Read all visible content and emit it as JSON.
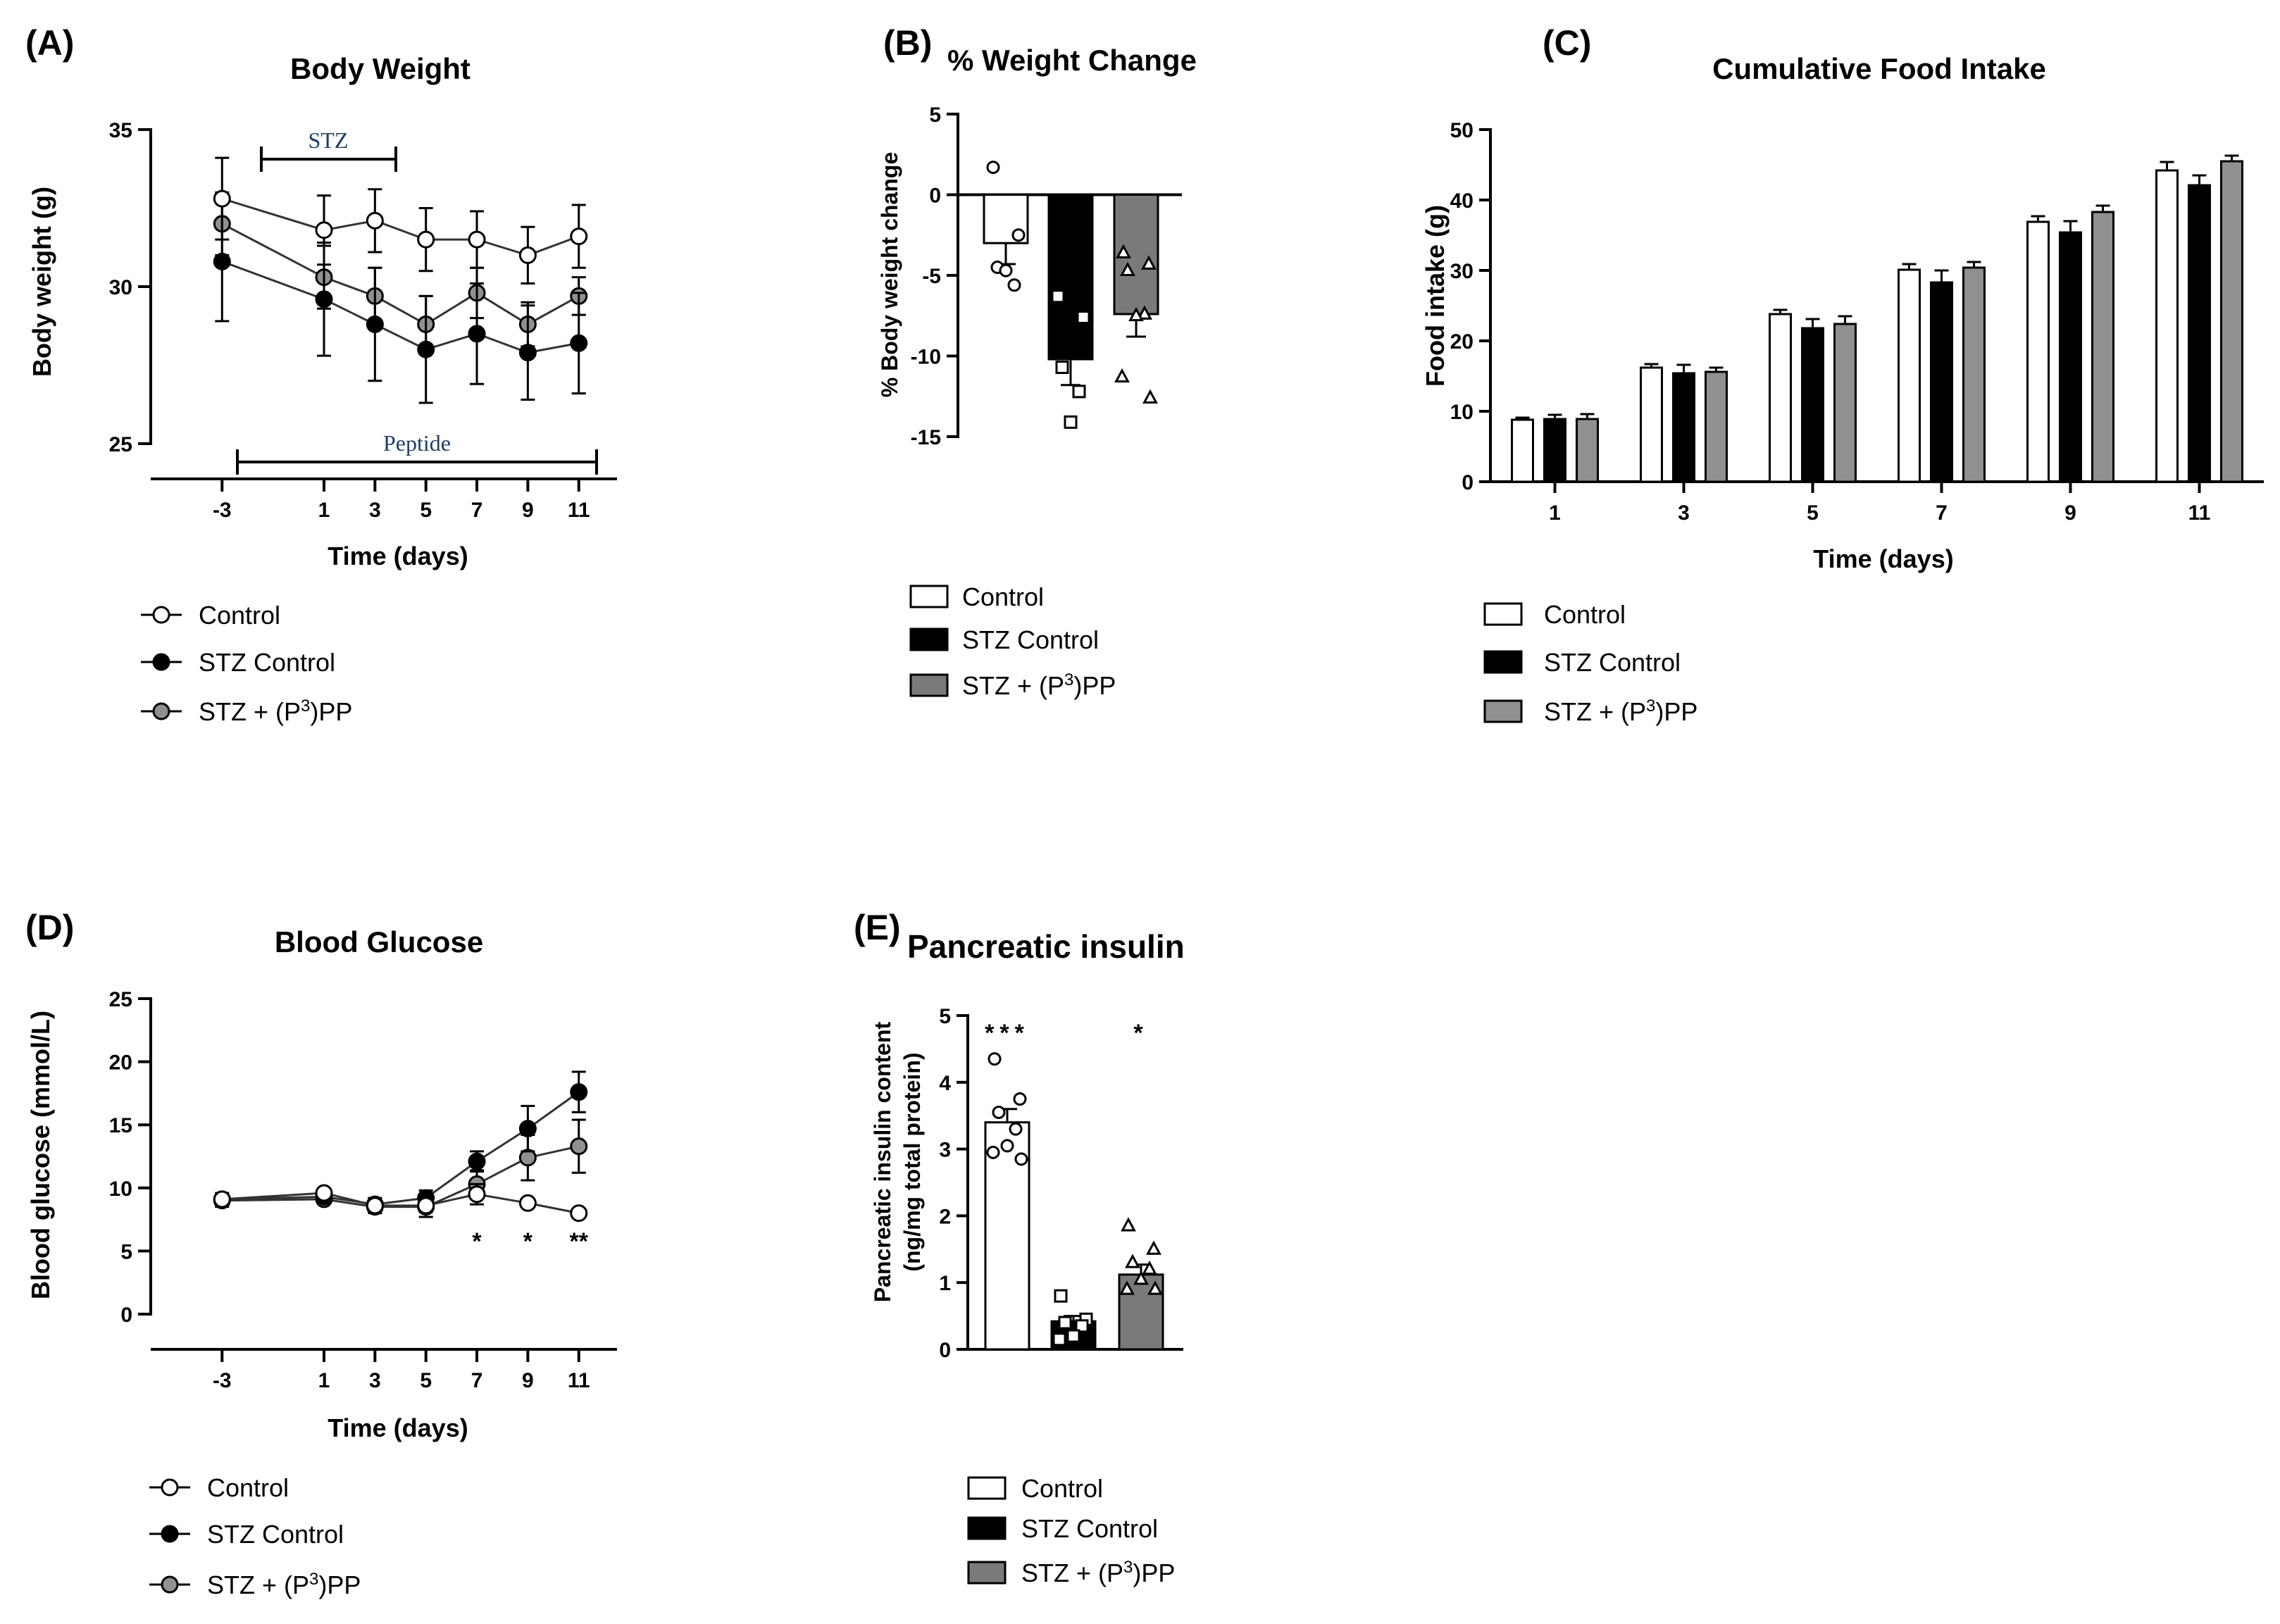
{
  "colors": {
    "control": "#ffffff",
    "stz_control": "#000000",
    "stz_p3pp": "#909090",
    "stz_p3pp_bar": "#7a7a7a",
    "stroke": "#000000",
    "annotation": "#1f3d66"
  },
  "legend": [
    {
      "key": "control",
      "label": "Control"
    },
    {
      "key": "stz_control",
      "label": "STZ Control"
    },
    {
      "key": "stz_p3pp",
      "label": "STZ + (P",
      "sup": "3",
      "tail": ")PP"
    }
  ],
  "chart_data": [
    {
      "id": "A",
      "panel_label": "(A)",
      "type": "line",
      "title": "Body Weight",
      "xlabel": "Time (days)",
      "ylabel": "Body weight (g)",
      "x": [
        -3,
        1,
        3,
        5,
        7,
        9,
        11
      ],
      "xlim": [
        -5.8,
        12.5
      ],
      "ylim": [
        25,
        35
      ],
      "yticks": [
        25,
        30,
        35
      ],
      "series": [
        {
          "name": "Control",
          "key": "control",
          "values": [
            32.8,
            31.8,
            32.1,
            31.5,
            31.5,
            31.0,
            31.6
          ],
          "err": [
            1.3,
            1.1,
            1.0,
            1.0,
            0.9,
            0.9,
            1.0
          ]
        },
        {
          "name": "STZ Control",
          "key": "stz_control",
          "values": [
            30.8,
            29.6,
            28.8,
            28.0,
            28.5,
            27.9,
            28.2
          ],
          "err": [
            1.9,
            1.8,
            1.8,
            1.7,
            1.6,
            1.5,
            1.6
          ]
        },
        {
          "name": "STZ + (P3)PP",
          "key": "stz_p3pp",
          "values": [
            32.0,
            30.3,
            29.7,
            28.8,
            29.8,
            28.8,
            29.7
          ],
          "err": [
            1.0,
            1.0,
            0.9,
            0.9,
            0.8,
            0.7,
            0.6
          ]
        }
      ],
      "annotations": [
        {
          "text": "STZ",
          "x_start": 1,
          "x_end": 5,
          "y": 34.0
        },
        {
          "text": "Peptide",
          "x_start": 0.5,
          "x_end": 11,
          "y": 24.3
        }
      ]
    },
    {
      "id": "B",
      "panel_label": "(B)",
      "type": "bar",
      "title": "% Weight Change",
      "xlabel": "",
      "ylabel": "% Body weight change",
      "categories": [
        "Control",
        "STZ Control",
        "STZ + (P3)PP"
      ],
      "keys": [
        "control",
        "stz_control",
        "stz_p3pp_bar"
      ],
      "values": [
        -3.0,
        -10.2,
        -7.4
      ],
      "err": [
        1.3,
        1.6,
        1.4
      ],
      "ylim": [
        -15,
        5
      ],
      "yticks": [
        -15,
        -10,
        -5,
        0,
        5
      ],
      "points": [
        [
          1.7,
          -2.5,
          -4.5,
          -5.6,
          -4.7
        ],
        [
          -6.3,
          -7.6,
          -10.7,
          -12.2,
          -14.1
        ],
        [
          -3.6,
          -4.3,
          -4.7,
          -7.4,
          -7.5,
          -11.3,
          -12.6
        ]
      ],
      "markers": [
        "circle",
        "square",
        "triangle"
      ]
    },
    {
      "id": "C",
      "panel_label": "(C)",
      "type": "bar",
      "title": "Cumulative Food Intake",
      "xlabel": "Time (days)",
      "ylabel": "Food intake (g)",
      "categories": [
        "1",
        "3",
        "5",
        "7",
        "9",
        "11"
      ],
      "series": [
        {
          "name": "Control",
          "key": "control",
          "values": [
            8.8,
            16.2,
            23.8,
            30.1,
            36.9,
            44.2
          ],
          "err": [
            0.3,
            0.5,
            0.6,
            0.8,
            0.8,
            1.2
          ]
        },
        {
          "name": "STZ Control",
          "key": "stz_control",
          "values": [
            8.9,
            15.4,
            21.8,
            28.3,
            35.4,
            42.1
          ],
          "err": [
            0.6,
            1.2,
            1.3,
            1.7,
            1.6,
            1.4
          ]
        },
        {
          "name": "STZ + (P3)PP",
          "key": "stz_p3pp",
          "values": [
            8.9,
            15.6,
            22.4,
            30.4,
            38.3,
            45.5
          ],
          "err": [
            0.7,
            0.6,
            1.1,
            0.8,
            0.9,
            0.8
          ]
        }
      ],
      "ylim": [
        0,
        50
      ],
      "yticks": [
        0,
        10,
        20,
        30,
        40,
        50
      ]
    },
    {
      "id": "D",
      "panel_label": "(D)",
      "type": "line",
      "title": "Blood Glucose",
      "xlabel": "Time (days)",
      "ylabel": "Blood glucose (mmol/L)",
      "x": [
        -3,
        1,
        3,
        5,
        7,
        9,
        11
      ],
      "xlim": [
        -5.8,
        12.5
      ],
      "ylim": [
        0,
        25
      ],
      "yticks": [
        0,
        5,
        10,
        15,
        20,
        25
      ],
      "series": [
        {
          "name": "Control",
          "key": "control",
          "values": [
            9.1,
            9.6,
            8.6,
            8.6,
            9.5,
            8.8,
            8.0
          ],
          "err": [
            0.3,
            0.3,
            0.3,
            0.5,
            0.8,
            0.3,
            0.2
          ]
        },
        {
          "name": "STZ Control",
          "key": "stz_control",
          "values": [
            9.1,
            9.3,
            8.7,
            9.2,
            12.1,
            14.7,
            17.6
          ],
          "err": [
            0.5,
            0.4,
            0.5,
            0.6,
            0.8,
            1.8,
            1.6
          ]
        },
        {
          "name": "STZ + (P3)PP",
          "key": "stz_p3pp",
          "values": [
            9.0,
            9.1,
            8.5,
            8.5,
            10.3,
            12.4,
            13.3
          ],
          "err": [
            0.5,
            0.3,
            0.5,
            0.8,
            1.1,
            1.8,
            2.1
          ]
        }
      ],
      "significance": [
        {
          "x": 7,
          "label": "*"
        },
        {
          "x": 9,
          "label": "*"
        },
        {
          "x": 11,
          "label": "**"
        }
      ]
    },
    {
      "id": "E",
      "panel_label": "(E)",
      "type": "bar",
      "title": "Pancreatic insulin",
      "xlabel": "",
      "ylabel": "Pancreatic insulin content",
      "ylabel2": "(ng/mg total protein)",
      "categories": [
        "Control",
        "STZ Control",
        "STZ + (P3)PP"
      ],
      "keys": [
        "control",
        "stz_control",
        "stz_p3pp_bar"
      ],
      "values": [
        3.4,
        0.42,
        1.12
      ],
      "err": [
        0.2,
        0.08,
        0.15
      ],
      "ylim": [
        0,
        5
      ],
      "yticks": [
        0,
        1,
        2,
        3,
        4,
        5
      ],
      "points": [
        [
          4.35,
          3.75,
          3.55,
          3.3,
          3.05,
          2.95,
          2.85
        ],
        [
          0.8,
          0.45,
          0.4,
          0.35,
          0.2,
          0.15
        ],
        [
          1.85,
          1.5,
          1.3,
          1.2,
          1.05,
          0.9,
          0.9
        ]
      ],
      "markers": [
        "circle",
        "square",
        "triangle"
      ],
      "significance": [
        "***",
        "",
        "*"
      ]
    }
  ]
}
